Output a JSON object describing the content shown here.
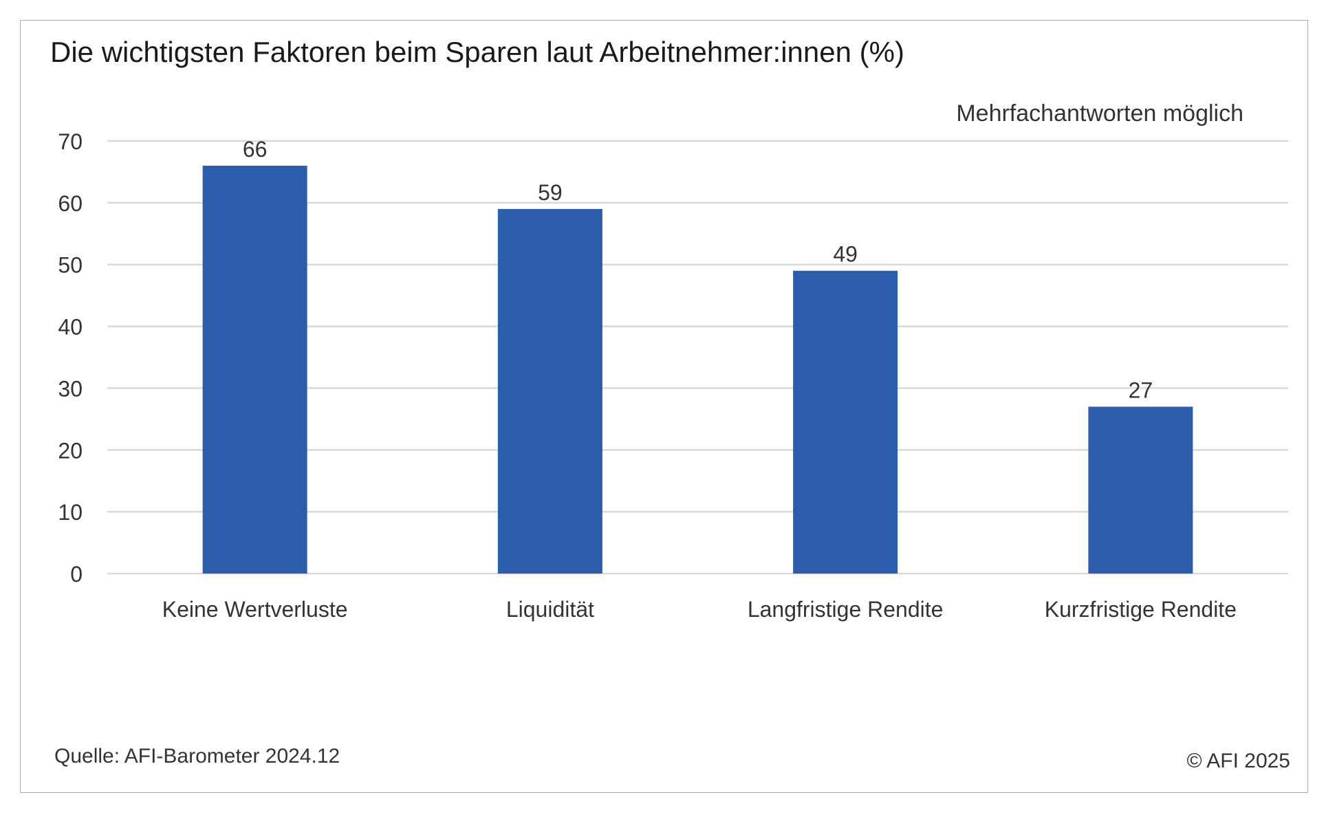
{
  "title": "Die wichtigsten Faktoren beim Sparen laut Arbeitnehmer:innen (%)",
  "note": "Mehrfachantworten möglich",
  "source": "Quelle: AFI-Barometer 2024.12",
  "copyright": "© AFI 2025",
  "chart_data": {
    "type": "bar",
    "categories": [
      "Keine Wertverluste",
      "Liquidität",
      "Langfristige Rendite",
      "Kurzfristige Rendite"
    ],
    "values": [
      66,
      59,
      49,
      27
    ],
    "data_labels": [
      "66",
      "59",
      "49",
      "27"
    ],
    "ylim": [
      0,
      70
    ],
    "yticks": [
      0,
      10,
      20,
      30,
      40,
      50,
      60,
      70
    ],
    "grid": true,
    "legend": "none",
    "bar_color": "#2b5daa",
    "grid_color": "#d9d9d9"
  }
}
